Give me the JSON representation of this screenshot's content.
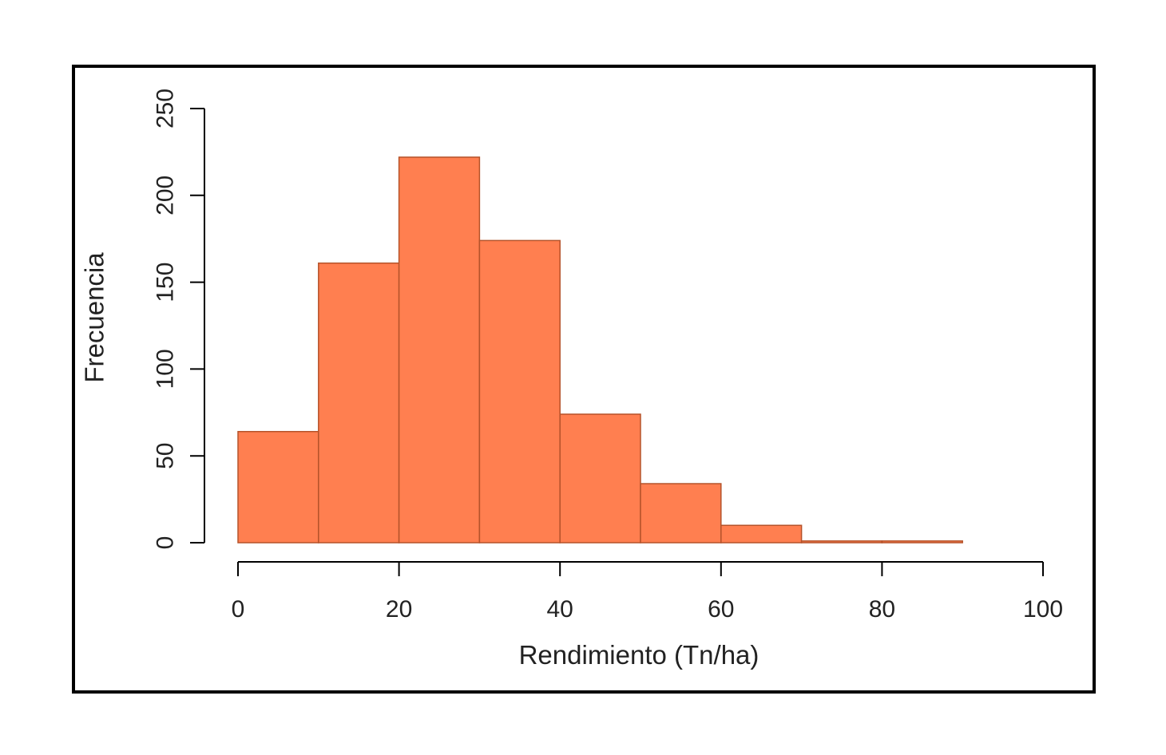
{
  "chart_data": {
    "type": "bar",
    "title": "",
    "xlabel": "Rendimiento (Tn/ha)",
    "ylabel": "Frecuencia",
    "bins": [
      {
        "start": 0,
        "end": 10,
        "value": 64
      },
      {
        "start": 10,
        "end": 20,
        "value": 161
      },
      {
        "start": 20,
        "end": 30,
        "value": 222
      },
      {
        "start": 30,
        "end": 40,
        "value": 174
      },
      {
        "start": 40,
        "end": 50,
        "value": 74
      },
      {
        "start": 50,
        "end": 60,
        "value": 34
      },
      {
        "start": 60,
        "end": 70,
        "value": 10
      },
      {
        "start": 70,
        "end": 80,
        "value": 1
      },
      {
        "start": 80,
        "end": 90,
        "value": 1
      }
    ],
    "xlim": [
      0,
      100
    ],
    "ylim": [
      0,
      250
    ],
    "xticks": [
      "0",
      "20",
      "40",
      "60",
      "80",
      "100"
    ],
    "yticks": [
      "0",
      "50",
      "100",
      "150",
      "200",
      "250"
    ],
    "bar_color": "#FF7F50",
    "bar_edge_color": "#B5532A",
    "grid": false
  }
}
